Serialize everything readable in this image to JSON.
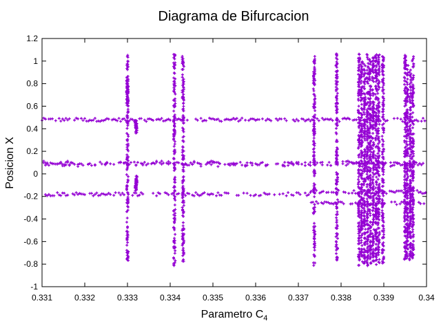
{
  "chart_data": {
    "type": "scatter",
    "title": "Diagrama de Bifurcacion",
    "xlabel": {
      "base": "Parametro C",
      "subscript": "4"
    },
    "ylabel": "Posicion X",
    "xlim": [
      0.331,
      0.34
    ],
    "ylim": [
      -1,
      1.2
    ],
    "x_ticks": [
      "0.331",
      "0.332",
      "0.333",
      "0.334",
      "0.335",
      "0.336",
      "0.337",
      "0.338",
      "0.339",
      "0.34"
    ],
    "y_ticks": [
      "-1",
      "-0.8",
      "-0.6",
      "-0.4",
      "-0.2",
      "0",
      "0.2",
      "0.4",
      "0.6",
      "0.8",
      "1",
      "1.2"
    ],
    "marker_color": "#9400d3",
    "grid": false,
    "series": [
      {
        "name": "upper-branch",
        "y_center": 0.48,
        "x_start": 0.331,
        "x_end": 0.34
      },
      {
        "name": "middle-branch",
        "y_center": 0.09,
        "x_start": 0.331,
        "x_end": 0.34
      },
      {
        "name": "lower-branch",
        "y_center": -0.18,
        "x_start": 0.331,
        "x_end": 0.3373
      },
      {
        "name": "lower-branch-split-a",
        "y_center": -0.16,
        "x_start": 0.3373,
        "x_end": 0.34
      },
      {
        "name": "lower-branch-split-b",
        "y_center": -0.26,
        "x_start": 0.3373,
        "x_end": 0.34
      }
    ],
    "chaotic_bands": [
      {
        "x": 0.333,
        "y_min": -0.77,
        "y_max": 1.06
      },
      {
        "x": 0.3341,
        "y_min": -0.82,
        "y_max": 1.06
      },
      {
        "x": 0.3343,
        "y_min": -0.78,
        "y_max": 1.05
      },
      {
        "x": 0.33737,
        "y_min": -0.82,
        "y_max": 1.06
      },
      {
        "x": 0.3379,
        "y_min": -0.77,
        "y_max": 1.07
      },
      {
        "x": 0.33842,
        "y_min": -0.82,
        "y_max": 1.07
      },
      {
        "x": 0.33848,
        "y_min": -0.78,
        "y_max": 1.0
      },
      {
        "x": 0.33855,
        "y_min": -0.8,
        "y_max": 0.98
      },
      {
        "x": 0.33862,
        "y_min": -0.82,
        "y_max": 1.06
      },
      {
        "x": 0.33868,
        "y_min": -0.8,
        "y_max": 1.02
      },
      {
        "x": 0.33875,
        "y_min": -0.78,
        "y_max": 1.03
      },
      {
        "x": 0.33882,
        "y_min": -0.81,
        "y_max": 1.06
      },
      {
        "x": 0.33888,
        "y_min": -0.79,
        "y_max": 1.06
      },
      {
        "x": 0.33898,
        "y_min": -0.8,
        "y_max": 1.06
      },
      {
        "x": 0.3395,
        "y_min": -0.77,
        "y_max": 1.06
      },
      {
        "x": 0.33955,
        "y_min": -0.76,
        "y_max": 0.98
      },
      {
        "x": 0.33962,
        "y_min": -0.78,
        "y_max": 0.94
      },
      {
        "x": 0.33968,
        "y_min": -0.77,
        "y_max": 1.04
      }
    ],
    "small_clusters": [
      {
        "x": 0.3332,
        "y_min": 0.36,
        "y_max": 0.48
      },
      {
        "x": 0.3332,
        "y_min": -0.15,
        "y_max": -0.02
      },
      {
        "x": 0.333,
        "y_min": 0.62,
        "y_max": 0.78
      }
    ]
  }
}
